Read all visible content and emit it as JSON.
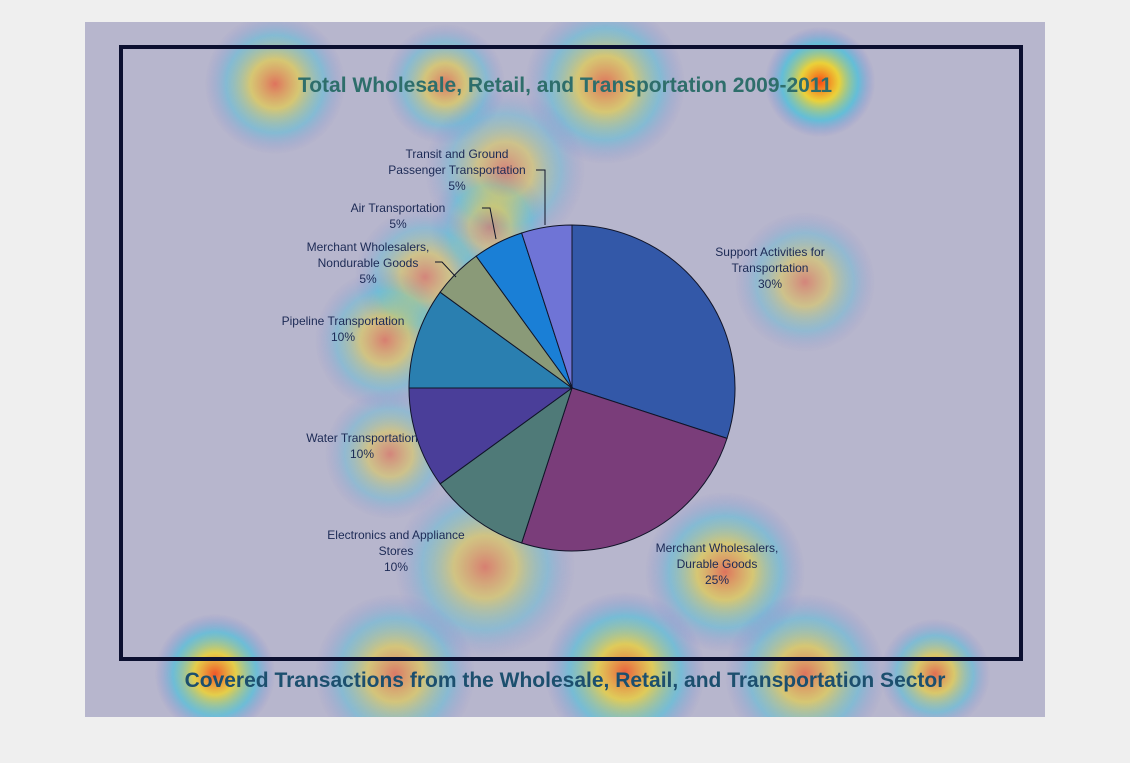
{
  "chart_data": {
    "type": "pie",
    "title": "Total Wholesale, Retail, and Transportation 2009-2011",
    "subtitle": "Covered Transactions from the Wholesale, Retail, and Transportation Sector",
    "slices": [
      {
        "label": "Support Activities for Transportation",
        "value": 30,
        "display": "30%",
        "color": "#3358a8"
      },
      {
        "label": "Merchant Wholesalers, Durable Goods",
        "value": 25,
        "display": "25%",
        "color": "#7a3d7a"
      },
      {
        "label": "Electronics and Appliance Stores",
        "value": 10,
        "display": "10%",
        "color": "#4f7a78"
      },
      {
        "label": "Water Transportation",
        "value": 10,
        "display": "10%",
        "color": "#4a3e99"
      },
      {
        "label": "Pipeline Transportation",
        "value": 10,
        "display": "10%",
        "color": "#2a7fb0"
      },
      {
        "label": "Merchant Wholesalers, Nondurable Goods",
        "value": 5,
        "display": "5%",
        "color": "#8a9a78"
      },
      {
        "label": "Air Transportation",
        "value": 5,
        "display": "5%",
        "color": "#1a7fd6"
      },
      {
        "label": "Transit and Ground Passenger Transportation",
        "value": 5,
        "display": "5%",
        "color": "#6f74d6"
      }
    ],
    "label_lines": [
      [
        "Support Activities for",
        "Transportation",
        "30%"
      ],
      [
        "Merchant Wholesalers,",
        "Durable Goods",
        "25%"
      ],
      [
        "Electronics and Appliance",
        "Stores",
        "10%"
      ],
      [
        "Water Transportation",
        "10%"
      ],
      [
        "Pipeline Transportation",
        "10%"
      ],
      [
        "Merchant Wholesalers,",
        "Nondurable Goods",
        "5%"
      ],
      [
        "Air Transportation",
        "5%"
      ],
      [
        "Transit and Ground",
        "Passenger Transportation",
        "5%"
      ]
    ]
  }
}
